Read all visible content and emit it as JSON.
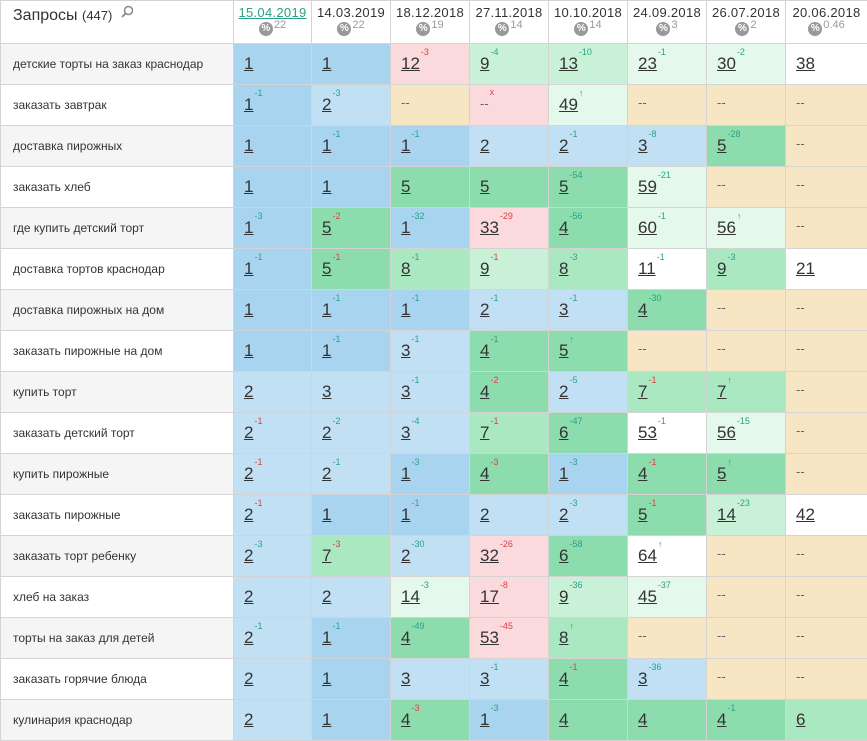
{
  "header": {
    "title": "Запросы",
    "count": "(447)",
    "dates": [
      {
        "date": "15.04.2019",
        "visibility": "22"
      },
      {
        "date": "14.03.2019",
        "visibility": "22"
      },
      {
        "date": "18.12.2018",
        "visibility": "19"
      },
      {
        "date": "27.11.2018",
        "visibility": "14"
      },
      {
        "date": "10.10.2018",
        "visibility": "14"
      },
      {
        "date": "24.09.2018",
        "visibility": "3"
      },
      {
        "date": "26.07.2018",
        "visibility": "2"
      },
      {
        "date": "20.06.2018",
        "visibility": "0.46"
      }
    ],
    "percent_symbol": "%"
  },
  "rows": [
    {
      "query": "детские торты на заказ краснодар",
      "cells": [
        {
          "v": "1",
          "c": "",
          "cls": "c-dark"
        },
        {
          "v": "1",
          "c": "",
          "cls": "c-dark"
        },
        {
          "v": "12",
          "c": "-3",
          "cls": "c-pink"
        },
        {
          "v": "9",
          "c": "-4",
          "cls": "c-g3"
        },
        {
          "v": "13",
          "c": "-10",
          "cls": "c-g3"
        },
        {
          "v": "23",
          "c": "-1",
          "cls": "c-g4"
        },
        {
          "v": "30",
          "c": "-2",
          "cls": "c-g4"
        },
        {
          "v": "38",
          "c": "",
          "cls": "c-white"
        }
      ]
    },
    {
      "query": "заказать завтрак",
      "cells": [
        {
          "v": "1",
          "c": "-1",
          "cls": "c-dark"
        },
        {
          "v": "2",
          "c": "-3",
          "cls": "c-light"
        },
        {
          "v": "--",
          "c": "",
          "cls": "c-yel"
        },
        {
          "v": "--",
          "c": "x",
          "cls": "c-pink"
        },
        {
          "v": "49",
          "c": "↑",
          "cls": "c-g4"
        },
        {
          "v": "--",
          "c": "",
          "cls": "c-yel"
        },
        {
          "v": "--",
          "c": "",
          "cls": "c-yel"
        },
        {
          "v": "--",
          "c": "",
          "cls": "c-yel"
        }
      ]
    },
    {
      "query": "доставка пирожных",
      "cells": [
        {
          "v": "1",
          "c": "",
          "cls": "c-dark"
        },
        {
          "v": "1",
          "c": "-1",
          "cls": "c-dark"
        },
        {
          "v": "1",
          "c": "-1",
          "cls": "c-dark"
        },
        {
          "v": "2",
          "c": "",
          "cls": "c-light"
        },
        {
          "v": "2",
          "c": "-1",
          "cls": "c-light"
        },
        {
          "v": "3",
          "c": "-8",
          "cls": "c-light"
        },
        {
          "v": "5",
          "c": "-28",
          "cls": "c-g1"
        },
        {
          "v": "--",
          "c": "",
          "cls": "c-yel"
        }
      ]
    },
    {
      "query": "заказать хлеб",
      "cells": [
        {
          "v": "1",
          "c": "",
          "cls": "c-dark"
        },
        {
          "v": "1",
          "c": "",
          "cls": "c-dark"
        },
        {
          "v": "5",
          "c": "",
          "cls": "c-g1"
        },
        {
          "v": "5",
          "c": "",
          "cls": "c-g1"
        },
        {
          "v": "5",
          "c": "-54",
          "cls": "c-g1"
        },
        {
          "v": "59",
          "c": "-21",
          "cls": "c-g4"
        },
        {
          "v": "--",
          "c": "",
          "cls": "c-yel"
        },
        {
          "v": "--",
          "c": "",
          "cls": "c-yel"
        }
      ]
    },
    {
      "query": "где купить детский торт",
      "cells": [
        {
          "v": "1",
          "c": "-3",
          "cls": "c-dark"
        },
        {
          "v": "5",
          "c": "-2",
          "cls": "c-g1"
        },
        {
          "v": "1",
          "c": "-32",
          "cls": "c-dark"
        },
        {
          "v": "33",
          "c": "-29",
          "cls": "c-pink"
        },
        {
          "v": "4",
          "c": "-56",
          "cls": "c-g1"
        },
        {
          "v": "60",
          "c": "-1",
          "cls": "c-g4"
        },
        {
          "v": "56",
          "c": "↑",
          "cls": "c-g4"
        },
        {
          "v": "--",
          "c": "",
          "cls": "c-yel"
        }
      ]
    },
    {
      "query": "доставка тортов краснодар",
      "cells": [
        {
          "v": "1",
          "c": "-1",
          "cls": "c-dark"
        },
        {
          "v": "5",
          "c": "-1",
          "cls": "c-g1"
        },
        {
          "v": "8",
          "c": "-1",
          "cls": "c-g2"
        },
        {
          "v": "9",
          "c": "-1",
          "cls": "c-g3"
        },
        {
          "v": "8",
          "c": "-3",
          "cls": "c-g2"
        },
        {
          "v": "11",
          "c": "-1",
          "cls": "c-white"
        },
        {
          "v": "9",
          "c": "-3",
          "cls": "c-g2"
        },
        {
          "v": "21",
          "c": "",
          "cls": "c-white"
        }
      ]
    },
    {
      "query": "доставка пирожных на дом",
      "cells": [
        {
          "v": "1",
          "c": "",
          "cls": "c-dark"
        },
        {
          "v": "1",
          "c": "-1",
          "cls": "c-dark"
        },
        {
          "v": "1",
          "c": "-1",
          "cls": "c-dark"
        },
        {
          "v": "2",
          "c": "-1",
          "cls": "c-light"
        },
        {
          "v": "3",
          "c": "-1",
          "cls": "c-light"
        },
        {
          "v": "4",
          "c": "-30",
          "cls": "c-g1"
        },
        {
          "v": "--",
          "c": "",
          "cls": "c-yel"
        },
        {
          "v": "--",
          "c": "",
          "cls": "c-yel"
        }
      ]
    },
    {
      "query": "заказать пирожные на дом",
      "cells": [
        {
          "v": "1",
          "c": "",
          "cls": "c-dark"
        },
        {
          "v": "1",
          "c": "-1",
          "cls": "c-dark"
        },
        {
          "v": "3",
          "c": "-1",
          "cls": "c-light"
        },
        {
          "v": "4",
          "c": "-1",
          "cls": "c-g1"
        },
        {
          "v": "5",
          "c": "↑",
          "cls": "c-g1"
        },
        {
          "v": "--",
          "c": "",
          "cls": "c-yel"
        },
        {
          "v": "--",
          "c": "",
          "cls": "c-yel"
        },
        {
          "v": "--",
          "c": "",
          "cls": "c-yel"
        }
      ]
    },
    {
      "query": "купить торт",
      "cells": [
        {
          "v": "2",
          "c": "",
          "cls": "c-light"
        },
        {
          "v": "3",
          "c": "",
          "cls": "c-light"
        },
        {
          "v": "3",
          "c": "-1",
          "cls": "c-light"
        },
        {
          "v": "4",
          "c": "-2",
          "cls": "c-g1"
        },
        {
          "v": "2",
          "c": "-5",
          "cls": "c-light"
        },
        {
          "v": "7",
          "c": "-1",
          "cls": "c-g2"
        },
        {
          "v": "7",
          "c": "↑",
          "cls": "c-g2"
        },
        {
          "v": "--",
          "c": "",
          "cls": "c-yel"
        }
      ]
    },
    {
      "query": "заказать детский торт",
      "cells": [
        {
          "v": "2",
          "c": "-1",
          "cls": "c-light"
        },
        {
          "v": "2",
          "c": "-2",
          "cls": "c-light"
        },
        {
          "v": "3",
          "c": "-4",
          "cls": "c-light"
        },
        {
          "v": "7",
          "c": "-1",
          "cls": "c-g2"
        },
        {
          "v": "6",
          "c": "-47",
          "cls": "c-g1"
        },
        {
          "v": "53",
          "c": "-1",
          "cls": "c-white"
        },
        {
          "v": "56",
          "c": "-15",
          "cls": "c-g4"
        },
        {
          "v": "--",
          "c": "",
          "cls": "c-yel"
        }
      ]
    },
    {
      "query": "купить пирожные",
      "cells": [
        {
          "v": "2",
          "c": "-1",
          "cls": "c-light"
        },
        {
          "v": "2",
          "c": "-1",
          "cls": "c-light"
        },
        {
          "v": "1",
          "c": "-3",
          "cls": "c-dark"
        },
        {
          "v": "4",
          "c": "-3",
          "cls": "c-g1"
        },
        {
          "v": "1",
          "c": "-3",
          "cls": "c-dark"
        },
        {
          "v": "4",
          "c": "-1",
          "cls": "c-g1"
        },
        {
          "v": "5",
          "c": "↑",
          "cls": "c-g1"
        },
        {
          "v": "--",
          "c": "",
          "cls": "c-yel"
        }
      ]
    },
    {
      "query": "заказать пирожные",
      "cells": [
        {
          "v": "2",
          "c": "-1",
          "cls": "c-light"
        },
        {
          "v": "1",
          "c": "",
          "cls": "c-dark"
        },
        {
          "v": "1",
          "c": "-1",
          "cls": "c-dark"
        },
        {
          "v": "2",
          "c": "",
          "cls": "c-light"
        },
        {
          "v": "2",
          "c": "-3",
          "cls": "c-light"
        },
        {
          "v": "5",
          "c": "-1",
          "cls": "c-g1"
        },
        {
          "v": "14",
          "c": "-23",
          "cls": "c-g3"
        },
        {
          "v": "42",
          "c": "",
          "cls": "c-white"
        }
      ]
    },
    {
      "query": "заказать торт ребенку",
      "cells": [
        {
          "v": "2",
          "c": "-3",
          "cls": "c-light"
        },
        {
          "v": "7",
          "c": "-3",
          "cls": "c-g2"
        },
        {
          "v": "2",
          "c": "-30",
          "cls": "c-light"
        },
        {
          "v": "32",
          "c": "-26",
          "cls": "c-pink"
        },
        {
          "v": "6",
          "c": "-58",
          "cls": "c-g1"
        },
        {
          "v": "64",
          "c": "↑",
          "cls": "c-white"
        },
        {
          "v": "--",
          "c": "",
          "cls": "c-yel"
        },
        {
          "v": "--",
          "c": "",
          "cls": "c-yel"
        }
      ]
    },
    {
      "query": "хлеб на заказ",
      "cells": [
        {
          "v": "2",
          "c": "",
          "cls": "c-light"
        },
        {
          "v": "2",
          "c": "",
          "cls": "c-light"
        },
        {
          "v": "14",
          "c": "-3",
          "cls": "c-g4"
        },
        {
          "v": "17",
          "c": "-8",
          "cls": "c-pink"
        },
        {
          "v": "9",
          "c": "-36",
          "cls": "c-g3"
        },
        {
          "v": "45",
          "c": "-37",
          "cls": "c-g4"
        },
        {
          "v": "--",
          "c": "",
          "cls": "c-yel"
        },
        {
          "v": "--",
          "c": "",
          "cls": "c-yel"
        }
      ]
    },
    {
      "query": "торты на заказ для детей",
      "cells": [
        {
          "v": "2",
          "c": "-1",
          "cls": "c-light"
        },
        {
          "v": "1",
          "c": "-1",
          "cls": "c-dark"
        },
        {
          "v": "4",
          "c": "-49",
          "cls": "c-g1"
        },
        {
          "v": "53",
          "c": "-45",
          "cls": "c-pink"
        },
        {
          "v": "8",
          "c": "↑",
          "cls": "c-g2"
        },
        {
          "v": "--",
          "c": "",
          "cls": "c-yel"
        },
        {
          "v": "--",
          "c": "",
          "cls": "c-yel"
        },
        {
          "v": "--",
          "c": "",
          "cls": "c-yel"
        }
      ]
    },
    {
      "query": "заказать горячие блюда",
      "cells": [
        {
          "v": "2",
          "c": "",
          "cls": "c-light"
        },
        {
          "v": "1",
          "c": "",
          "cls": "c-dark"
        },
        {
          "v": "3",
          "c": "",
          "cls": "c-light"
        },
        {
          "v": "3",
          "c": "-1",
          "cls": "c-light"
        },
        {
          "v": "4",
          "c": "-1",
          "cls": "c-g1"
        },
        {
          "v": "3",
          "c": "-36",
          "cls": "c-light"
        },
        {
          "v": "--",
          "c": "",
          "cls": "c-yel"
        },
        {
          "v": "--",
          "c": "",
          "cls": "c-yel"
        }
      ]
    },
    {
      "query": "кулинария краснодар",
      "cells": [
        {
          "v": "2",
          "c": "",
          "cls": "c-light"
        },
        {
          "v": "1",
          "c": "",
          "cls": "c-dark"
        },
        {
          "v": "4",
          "c": "-3",
          "cls": "c-g1"
        },
        {
          "v": "1",
          "c": "-3",
          "cls": "c-dark"
        },
        {
          "v": "4",
          "c": "",
          "cls": "c-g1"
        },
        {
          "v": "4",
          "c": "",
          "cls": "c-g1"
        },
        {
          "v": "4",
          "c": "-1",
          "cls": "c-g1"
        },
        {
          "v": "6",
          "c": "",
          "cls": "c-g2"
        }
      ]
    }
  ],
  "change_colors": {
    "up": "#2aa186",
    "down": "#e04040"
  },
  "change_dirs": [
    [
      "",
      "",
      "down",
      "up",
      "up",
      "up",
      "up",
      ""
    ],
    [
      "up",
      "up",
      "",
      "x",
      "up",
      "",
      "",
      ""
    ],
    [
      "",
      "up",
      "up",
      "",
      "up",
      "up",
      "up",
      ""
    ],
    [
      "",
      "",
      "",
      "",
      "up",
      "up",
      "",
      ""
    ],
    [
      "up",
      "down",
      "up",
      "down",
      "up",
      "up",
      "up",
      ""
    ],
    [
      "up",
      "down",
      "up",
      "down",
      "up",
      "up",
      "up",
      ""
    ],
    [
      "",
      "up",
      "up",
      "up",
      "up",
      "up",
      "",
      ""
    ],
    [
      "",
      "up",
      "up",
      "up",
      "up",
      "",
      "",
      ""
    ],
    [
      "",
      "",
      "up",
      "down",
      "up",
      "down",
      "up",
      ""
    ],
    [
      "down",
      "up",
      "up",
      "down",
      "up",
      "up",
      "up",
      ""
    ],
    [
      "down",
      "up",
      "up",
      "down",
      "up",
      "down",
      "up",
      ""
    ],
    [
      "down",
      "",
      "up",
      "",
      "up",
      "down",
      "up",
      ""
    ],
    [
      "up",
      "down",
      "up",
      "down",
      "up",
      "up",
      "",
      ""
    ],
    [
      "",
      "",
      "up",
      "down",
      "up",
      "up",
      "",
      ""
    ],
    [
      "up",
      "up",
      "up",
      "down",
      "up",
      "",
      "",
      ""
    ],
    [
      "",
      "",
      "",
      "up",
      "down",
      "up",
      "",
      ""
    ],
    [
      "",
      "",
      "down",
      "up",
      "",
      "",
      "up",
      ""
    ]
  ]
}
